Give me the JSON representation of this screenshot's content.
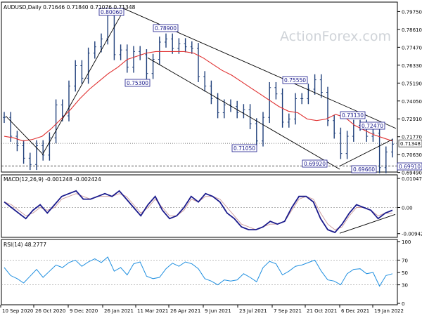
{
  "chart_data": {
    "type": "line",
    "chart_type_detail": "ohlc-bars",
    "watermark": "ActionForex.com",
    "price_panel": {
      "header": "AUDUSD,Daily  0.71646 0.71840 0.71076 0.71348",
      "ylim": [
        0.6952,
        0.8035
      ],
      "y_ticks": [
        "0.79750",
        "0.78610",
        "0.77470",
        "0.76330",
        "0.75190",
        "0.74050",
        "0.72910",
        "0.71770",
        "0.70630",
        "0.69490"
      ],
      "current_price": "0.71348",
      "reference_level": "0.69910",
      "series": [
        {
          "name": "Price (approx. weekly closes)",
          "color": "#1f3f7a",
          "values": [
            0.73,
            0.718,
            0.712,
            0.704,
            0.7,
            0.712,
            0.706,
            0.717,
            0.738,
            0.731,
            0.75,
            0.763,
            0.755,
            0.771,
            0.775,
            0.78,
            0.795,
            0.77,
            0.773,
            0.762,
            0.772,
            0.77,
            0.758,
            0.767,
            0.778,
            0.78,
            0.774,
            0.777,
            0.775,
            0.774,
            0.756,
            0.75,
            0.742,
            0.733,
            0.738,
            0.737,
            0.733,
            0.735,
            0.726,
            0.715,
            0.73,
            0.749,
            0.745,
            0.727,
            0.729,
            0.742,
            0.742,
            0.748,
            0.754,
            0.746,
            0.728,
            0.72,
            0.707,
            0.718,
            0.725,
            0.725,
            0.718,
            0.72,
            0.698,
            0.708,
            0.713
          ]
        },
        {
          "name": "Moving average",
          "color": "#e03030",
          "values": [
            0.718,
            0.717,
            0.715,
            0.716,
            0.718,
            0.723,
            0.729,
            0.735,
            0.742,
            0.748,
            0.753,
            0.758,
            0.762,
            0.767,
            0.769,
            0.771,
            0.772,
            0.772,
            0.772,
            0.772,
            0.771,
            0.768,
            0.764,
            0.76,
            0.757,
            0.753,
            0.749,
            0.745,
            0.741,
            0.737,
            0.734,
            0.733,
            0.729,
            0.728,
            0.729,
            0.732,
            0.73,
            0.725,
            0.722,
            0.719,
            0.717,
            0.715
          ]
        }
      ],
      "trendlines": [
        {
          "from": [
            "Sep 2020",
            0.731
          ],
          "to": [
            "Oct 2020",
            0.707
          ]
        },
        {
          "from": [
            "Oct 2020",
            0.706
          ],
          "to": [
            "Jan 2021",
            0.8
          ]
        },
        {
          "from": [
            "Jan 2021",
            0.799
          ],
          "to": [
            "Jan 2022",
            0.723
          ]
        },
        {
          "from": [
            "Mar 2021",
            0.768
          ],
          "to": [
            "Dec 2021",
            0.697
          ]
        },
        {
          "from": [
            "Dec 2021",
            0.699
          ],
          "to": [
            "Feb 2022",
            0.716
          ]
        }
      ],
      "annotations": [
        {
          "label": "0.80060",
          "value": 0.8006
        },
        {
          "label": "0.78900",
          "value": 0.789
        },
        {
          "label": "0.75300",
          "value": 0.753
        },
        {
          "label": "0.75550",
          "value": 0.7555
        },
        {
          "label": "0.73130",
          "value": 0.7313
        },
        {
          "label": "0.72470",
          "value": 0.7247
        },
        {
          "label": "0.71050",
          "value": 0.7105
        },
        {
          "label": "0.69920",
          "value": 0.6992
        },
        {
          "label": "0.69660",
          "value": 0.6966
        },
        {
          "label": "0.69910",
          "value": 0.6991
        }
      ]
    },
    "macd_panel": {
      "header": "MACD(12,26,9) -0.001248 -0.002424",
      "ylim": [
        -0.01,
        0.011
      ],
      "y_ticks": [
        "0.010472",
        "0.00",
        "-0.009426"
      ],
      "series": [
        {
          "name": "MACD main",
          "color": "#1a1a8c",
          "values": [
            0.002,
            0.0,
            -0.002,
            -0.004,
            -0.001,
            0.001,
            -0.002,
            0.001,
            0.004,
            0.005,
            0.006,
            0.003,
            0.003,
            0.004,
            0.005,
            0.004,
            0.006,
            0.003,
            0.0,
            -0.003,
            0.001,
            0.004,
            -0.001,
            -0.004,
            -0.003,
            0.0,
            0.004,
            0.002,
            0.005,
            0.004,
            0.002,
            -0.002,
            -0.004,
            -0.007,
            -0.008,
            -0.008,
            -0.007,
            -0.005,
            -0.006,
            -0.005,
            0.0,
            0.004,
            0.004,
            0.002,
            -0.004,
            -0.008,
            -0.009,
            -0.006,
            -0.002,
            0.001,
            0.0,
            -0.001,
            -0.004,
            -0.002,
            -0.001
          ]
        },
        {
          "name": "Signal",
          "color": "#cc9999",
          "values": [
            0.002,
            0.001,
            -0.001,
            -0.003,
            -0.002,
            0.0,
            -0.001,
            0.0,
            0.003,
            0.004,
            0.005,
            0.004,
            0.003,
            0.004,
            0.004,
            0.004,
            0.005,
            0.004,
            0.001,
            -0.002,
            0.0,
            0.003,
            0.0,
            -0.003,
            -0.003,
            -0.001,
            0.003,
            0.002,
            0.004,
            0.004,
            0.003,
            0.0,
            -0.003,
            -0.006,
            -0.007,
            -0.008,
            -0.007,
            -0.006,
            -0.006,
            -0.005,
            -0.001,
            0.003,
            0.004,
            0.003,
            -0.002,
            -0.006,
            -0.008,
            -0.007,
            -0.003,
            0.0,
            0.0,
            -0.001,
            -0.003,
            -0.002,
            -0.002
          ]
        }
      ]
    },
    "rsi_panel": {
      "header": "RSI(14) 48.2777",
      "ylim": [
        0,
        100
      ],
      "y_ticks": [
        "100",
        "70",
        "50",
        "30",
        "0"
      ],
      "series": [
        {
          "name": "RSI(14)",
          "color": "#1f8fe0",
          "values": [
            58,
            45,
            40,
            33,
            44,
            55,
            42,
            52,
            62,
            58,
            66,
            70,
            60,
            67,
            72,
            66,
            75,
            52,
            58,
            46,
            64,
            67,
            44,
            40,
            42,
            56,
            65,
            60,
            67,
            64,
            56,
            40,
            36,
            30,
            38,
            36,
            38,
            48,
            42,
            35,
            58,
            68,
            64,
            46,
            52,
            60,
            62,
            66,
            70,
            52,
            38,
            36,
            30,
            48,
            55,
            56,
            48,
            50,
            28,
            45,
            48
          ]
        }
      ]
    },
    "x_tick_labels": [
      "10 Sep 2020",
      "26 Oct 2020",
      "9 Dec 2020",
      "26 Jan 2021",
      "11 Mar 2021",
      "26 Apr 2021",
      "9 Jun 2021",
      "23 Jul 2021",
      "7 Sep 2021",
      "21 Oct 2021",
      "6 Dec 2021",
      "19 Jan 2022"
    ],
    "grid": false
  }
}
